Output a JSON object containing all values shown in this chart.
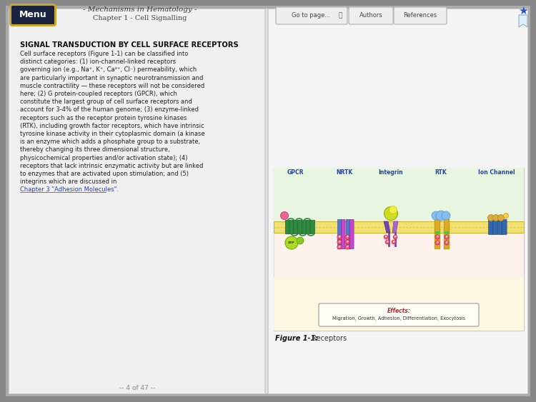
{
  "title": "- Mechanisms in Hematology -",
  "subtitle": "Chapter 1 - Cell Signalling",
  "menu_text": "Menu",
  "menu_bg": "#1a2340",
  "menu_border": "#c8a830",
  "section_title": "SIGNAL TRANSDUCTION BY CELL SURFACE RECEPTORS",
  "body_lines": [
    "Cell surface receptors (Figure 1-1) can be classified into",
    "distinct categories: (1) ion-channel-linked receptors",
    "governing ion (e.g., Na⁺, K⁺, Ca²⁺, Cl⁻) permeability, which",
    "are particularly important in synaptic neurotransmission and",
    "muscle contractility — these receptors will not be considered",
    "here; (2) G protein-coupled receptors (GPCR), which",
    "constitute the largest group of cell surface receptors and",
    "account for 3-4% of the human genome; (3) enzyme-linked",
    "receptors such as the receptor protein tyrosine kinases",
    "(RTK), including growth factor receptors, which have intrinsic",
    "tyrosine kinase activity in their cytoplasmic domain (a kinase",
    "is an enzyme which adds a phosphate group to a substrate,",
    "thereby changing its three dimensional structure,",
    "physicochemical properties and/or activation state); (4)",
    "receptors that lack intrinsic enzymatic activity but are linked",
    "to enzymes that are activated upon stimulation; and (5)",
    "integrins which are discussed in"
  ],
  "link_text": "Chapter 3 \"Adhesion Molecules\".",
  "fig_caption_bold": "Figure 1-1:",
  "fig_caption_normal": " Receptors",
  "page_indicator": "-- 4 of 47 --",
  "bg_outer": "#888888",
  "bg_left": "#f0f0f0",
  "bg_right": "#f5f5f5",
  "figure_labels": [
    "GPCR",
    "NRTK",
    "Integrin",
    "RTK",
    "Ion Channel"
  ],
  "effects_bold": "Effects:",
  "effects_normal": "Migration, Growth, Adhesion, Differentiation, Exocytosis",
  "gpcr_color": "#2d8a3e",
  "nrtk_blue": "#5577cc",
  "nrtk_violet": "#cc44cc",
  "integrin_purple": "#8844aa",
  "integrin_green": "#aadd22",
  "rtk_gold": "#ddaa22",
  "rtk_blue": "#88bbee",
  "ionchannel_blue": "#3366aa",
  "ionchannel_gold": "#ddaa44",
  "phospho_pink": "#ee5577",
  "arrow_green": "#228833",
  "membrane_yellow": "#f0e070",
  "membrane_border": "#c8b030",
  "extracell_green": "#e8f5e0",
  "cytoplasm_pink": "#fce8e0",
  "cytoplasm_yellow": "#fffce0",
  "link_color": "#2244cc",
  "bookmark_color": "#2255cc"
}
